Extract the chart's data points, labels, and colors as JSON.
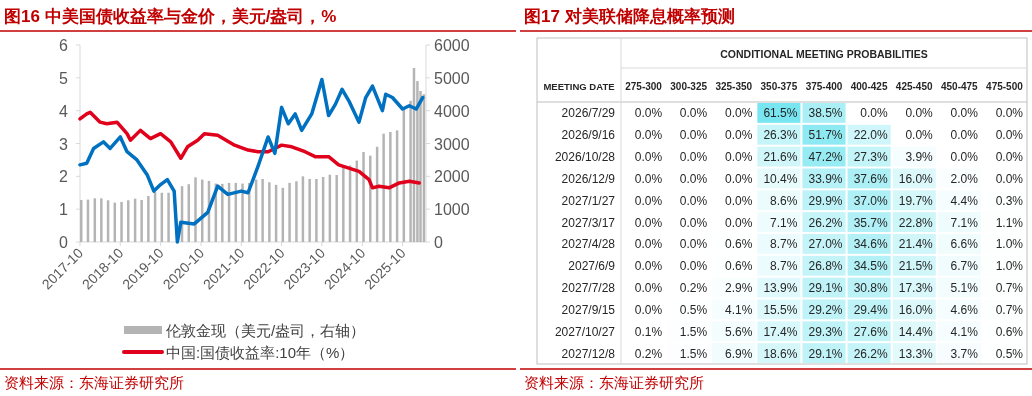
{
  "chart_data": [
    {
      "type": "line",
      "title": "图16  中美国债收益率与金价，美元/盎司，%",
      "annotations": [
        "资料来源：东海证券研究所"
      ],
      "xlim": [
        "2017-10",
        "2026-05"
      ],
      "xticks": [
        "2017-10",
        "2018-10",
        "2019-10",
        "2020-10",
        "2021-10",
        "2022-10",
        "2023-10",
        "2024-10",
        "2025-10"
      ],
      "ylim": [
        0,
        6
      ],
      "yticks": [
        0,
        1,
        2,
        3,
        4,
        5,
        6
      ],
      "y2lim": [
        0,
        6000
      ],
      "y2ticks": [
        0,
        1000,
        2000,
        3000,
        4000,
        5000,
        6000
      ],
      "legend": "bottom",
      "series": [
        {
          "name": "伦敦金现（美元/盎司，右轴）",
          "type": "bar",
          "axis": "y2",
          "color": "#b4b4b4",
          "x": [
            "2017-10",
            "2017-12",
            "2018-02",
            "2018-04",
            "2018-06",
            "2018-08",
            "2018-10",
            "2018-12",
            "2019-02",
            "2019-04",
            "2019-06",
            "2019-08",
            "2019-10",
            "2019-12",
            "2020-02",
            "2020-04",
            "2020-06",
            "2020-08",
            "2020-10",
            "2020-12",
            "2021-02",
            "2021-04",
            "2021-06",
            "2021-08",
            "2021-10",
            "2021-12",
            "2022-02",
            "2022-04",
            "2022-06",
            "2022-08",
            "2022-10",
            "2022-12",
            "2023-02",
            "2023-04",
            "2023-06",
            "2023-08",
            "2023-10",
            "2023-12",
            "2024-02",
            "2024-04",
            "2024-06",
            "2024-08",
            "2024-10",
            "2024-12",
            "2025-02",
            "2025-04",
            "2025-06",
            "2025-08",
            "2025-10",
            "2025-12",
            "2026-01",
            "2026-02",
            "2026-03",
            "2026-04"
          ],
          "values": [
            1280,
            1290,
            1330,
            1330,
            1270,
            1200,
            1220,
            1270,
            1320,
            1280,
            1400,
            1520,
            1500,
            1500,
            null,
            1700,
            1760,
            1970,
            1900,
            1860,
            1780,
            1770,
            1800,
            1800,
            1780,
            1800,
            1900,
            1920,
            1820,
            1740,
            1650,
            1800,
            1850,
            2000,
            1920,
            1920,
            1980,
            2050,
            2040,
            2330,
            2330,
            2480,
            2740,
            2630,
            2900,
            3300,
            3350,
            3400,
            4100,
            4300,
            5300,
            4900,
            4600,
            4500
          ]
        },
        {
          "name": "中国:国债收益率:10年（%）",
          "color": "#e0001b",
          "x": [
            "2017-10",
            "2017-12",
            "2018-01",
            "2018-04",
            "2018-06",
            "2018-09",
            "2018-12",
            "2019-01",
            "2019-04",
            "2019-07",
            "2019-10",
            "2020-01",
            "2020-04",
            "2020-06",
            "2020-09",
            "2020-11",
            "2021-03",
            "2021-08",
            "2021-12",
            "2022-03",
            "2022-06",
            "2022-10",
            "2023-01",
            "2023-05",
            "2023-08",
            "2023-12",
            "2024-03",
            "2024-06",
            "2024-09",
            "2024-12",
            "2025-01",
            "2025-03",
            "2025-06",
            "2025-09",
            "2025-12",
            "2026-03"
          ],
          "values": [
            3.75,
            3.9,
            3.95,
            3.65,
            3.6,
            3.65,
            3.3,
            3.1,
            3.4,
            3.15,
            3.3,
            3.05,
            2.55,
            2.9,
            3.1,
            3.3,
            3.25,
            2.95,
            2.8,
            2.75,
            2.75,
            2.95,
            2.9,
            2.75,
            2.6,
            2.6,
            2.35,
            2.25,
            2.15,
            1.9,
            1.65,
            1.7,
            1.65,
            1.8,
            1.85,
            1.8
          ]
        },
        {
          "color": "#0070c0",
          "x": [
            "2017-10",
            "2017-12",
            "2018-02",
            "2018-05",
            "2018-07",
            "2018-10",
            "2018-12",
            "2019-03",
            "2019-06",
            "2019-08",
            "2019-10",
            "2019-12",
            "2020-02",
            "2020-03",
            "2020-04",
            "2020-08",
            "2020-12",
            "2021-03",
            "2021-06",
            "2021-10",
            "2021-12",
            "2022-03",
            "2022-06",
            "2022-08",
            "2022-10",
            "2022-12",
            "2023-02",
            "2023-04",
            "2023-07",
            "2023-10",
            "2023-12",
            "2024-02",
            "2024-04",
            "2024-06",
            "2024-09",
            "2024-11",
            "2025-01",
            "2025-04",
            "2025-05",
            "2025-07",
            "2025-10",
            "2025-12",
            "2026-02",
            "2026-04"
          ],
          "values": [
            2.35,
            2.4,
            2.85,
            3.05,
            2.85,
            3.2,
            2.75,
            2.5,
            2.05,
            1.55,
            1.75,
            1.9,
            1.55,
            0,
            0.6,
            0.55,
            0.9,
            1.7,
            1.45,
            1.55,
            1.5,
            2.3,
            3.2,
            2.7,
            4.1,
            3.6,
            3.9,
            3.4,
            3.9,
            4.95,
            3.85,
            4.2,
            4.65,
            4.3,
            3.65,
            4.4,
            4.75,
            4.0,
            4.5,
            4.4,
            4.05,
            4.15,
            4.05,
            4.4
          ]
        }
      ]
    },
    {
      "type": "heatmap",
      "title": "图17  对美联储降息概率预测",
      "subtitle": "CONDITIONAL MEETING PROBABILITIES",
      "ylabel": "MEETING DATE",
      "annotations": [
        "资料来源：东海证券研究所"
      ],
      "categories": [
        "275-300",
        "300-325",
        "325-350",
        "350-375",
        "375-400",
        "400-425",
        "425-450",
        "450-475",
        "475-500"
      ],
      "y_categories": [
        "2026/7/29",
        "2026/9/16",
        "2026/10/28",
        "2026/12/9",
        "2027/1/27",
        "2027/3/17",
        "2027/4/28",
        "2027/6/9",
        "2027/7/28",
        "2027/9/15",
        "2027/10/27",
        "2027/12/8"
      ],
      "cells": [
        [
          0.0,
          0.0,
          0.0,
          61.5,
          38.5,
          0.0,
          0.0,
          0.0,
          0.0
        ],
        [
          0.0,
          0.0,
          0.0,
          26.3,
          51.7,
          22.0,
          0.0,
          0.0,
          0.0
        ],
        [
          0.0,
          0.0,
          0.0,
          21.6,
          47.2,
          27.3,
          3.9,
          0.0,
          0.0
        ],
        [
          0.0,
          0.0,
          0.0,
          10.4,
          33.9,
          37.6,
          16.0,
          2.0,
          0.0
        ],
        [
          0.0,
          0.0,
          0.0,
          8.6,
          29.9,
          37.0,
          19.7,
          4.4,
          0.3
        ],
        [
          0.0,
          0.0,
          0.0,
          7.1,
          26.2,
          35.7,
          22.8,
          7.1,
          1.1
        ],
        [
          0.0,
          0.0,
          0.6,
          8.7,
          27.0,
          34.6,
          21.4,
          6.6,
          1.0
        ],
        [
          0.0,
          0.0,
          0.6,
          8.7,
          26.8,
          34.5,
          21.5,
          6.7,
          1.0
        ],
        [
          0.0,
          0.2,
          2.9,
          13.9,
          29.1,
          30.8,
          17.3,
          5.1,
          0.7
        ],
        [
          0.0,
          0.5,
          4.1,
          15.5,
          29.2,
          29.4,
          16.0,
          4.6,
          0.7
        ],
        [
          0.1,
          1.5,
          5.6,
          17.4,
          29.3,
          27.6,
          14.4,
          4.1,
          0.6
        ],
        [
          0.2,
          1.5,
          6.9,
          18.6,
          29.1,
          26.2,
          13.3,
          3.7,
          0.5
        ]
      ],
      "cell_labels": [
        [
          "0.0%",
          "0.0%",
          "0.0%",
          "61.5%",
          "38.5%",
          "0.0%",
          "0.0%",
          "0.0%",
          "0.0%"
        ],
        [
          "0.0%",
          "0.0%",
          "0.0%",
          "26.3%",
          "51.7%",
          "22.0%",
          "0.0%",
          "0.0%",
          "0.0%"
        ],
        [
          "0.0%",
          "0.0%",
          "0.0%",
          "21.6%",
          "47.2%",
          "27.3%",
          "3.9%",
          "0.0%",
          "0.0%"
        ],
        [
          "0.0%",
          "0.0%",
          "0.0%",
          "10.4%",
          "33.9%",
          "37.6%",
          "16.0%",
          "2.0%",
          "0.0%"
        ],
        [
          "0.0%",
          "0.0%",
          "0.0%",
          "8.6%",
          "29.9%",
          "37.0%",
          "19.7%",
          "4.4%",
          "0.3%"
        ],
        [
          "0.0%",
          "0.0%",
          "0.0%",
          "7.1%",
          "26.2%",
          "35.7%",
          "22.8%",
          "7.1%",
          "1.1%"
        ],
        [
          "0.0%",
          "0.0%",
          "0.6%",
          "8.7%",
          "27.0%",
          "34.6%",
          "21.4%",
          "6.6%",
          "1.0%"
        ],
        [
          "0.0%",
          "0.0%",
          "0.6%",
          "8.7%",
          "26.8%",
          "34.5%",
          "21.5%",
          "6.7%",
          "1.0%"
        ],
        [
          "0.0%",
          "0.2%",
          "2.9%",
          "13.9%",
          "29.1%",
          "30.8%",
          "17.3%",
          "5.1%",
          "0.7%"
        ],
        [
          "0.0%",
          "0.5%",
          "4.1%",
          "15.5%",
          "29.2%",
          "29.4%",
          "16.0%",
          "4.6%",
          "0.7%"
        ],
        [
          "0.1%",
          "1.5%",
          "5.6%",
          "17.4%",
          "29.3%",
          "27.6%",
          "14.4%",
          "4.1%",
          "0.6%"
        ],
        [
          "0.2%",
          "1.5%",
          "6.9%",
          "18.6%",
          "29.1%",
          "26.2%",
          "13.3%",
          "3.7%",
          "0.5%"
        ]
      ]
    }
  ]
}
